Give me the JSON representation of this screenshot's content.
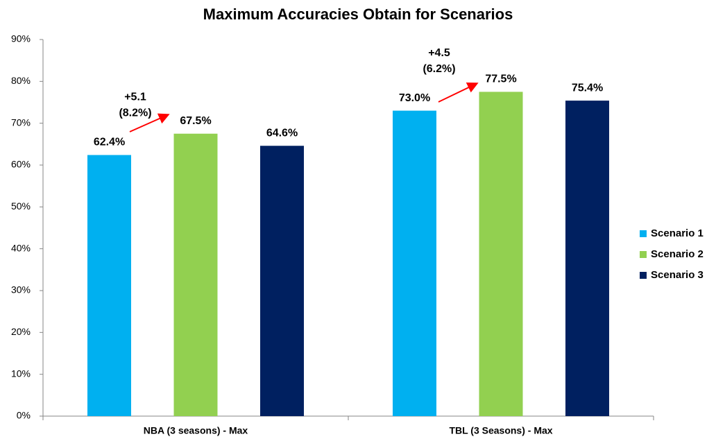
{
  "chart_data": {
    "type": "bar",
    "title": "Maximum Accuracies Obtain for Scenarios",
    "categories": [
      "NBA (3 seasons) - Max",
      "TBL (3 Seasons) - Max"
    ],
    "series": [
      {
        "name": "Scenario 1",
        "color": "#00b0f0",
        "values": [
          62.4,
          73.0
        ],
        "value_labels": [
          "62.4%",
          "73.0%"
        ]
      },
      {
        "name": "Scenario 2",
        "color": "#92d050",
        "values": [
          67.5,
          77.5
        ],
        "value_labels": [
          "67.5%",
          "77.5%"
        ]
      },
      {
        "name": "Scenario 3",
        "color": "#002060",
        "values": [
          64.6,
          75.4
        ],
        "value_labels": [
          "64.6%",
          "75.4%"
        ]
      }
    ],
    "ylim": [
      0,
      90
    ],
    "yticks": [
      {
        "value": 0,
        "label": "0%"
      },
      {
        "value": 10,
        "label": "10%"
      },
      {
        "value": 20,
        "label": "20%"
      },
      {
        "value": 30,
        "label": "30%"
      },
      {
        "value": 40,
        "label": "40%"
      },
      {
        "value": 50,
        "label": "50%"
      },
      {
        "value": 60,
        "label": "60%"
      },
      {
        "value": 70,
        "label": "70%"
      },
      {
        "value": 80,
        "label": "80%"
      },
      {
        "value": 90,
        "label": "90%"
      }
    ],
    "legend": "right",
    "annotations": [
      [
        "+5.1",
        "(8.2%)"
      ],
      [
        "+4.5",
        "(6.2%)"
      ]
    ]
  }
}
